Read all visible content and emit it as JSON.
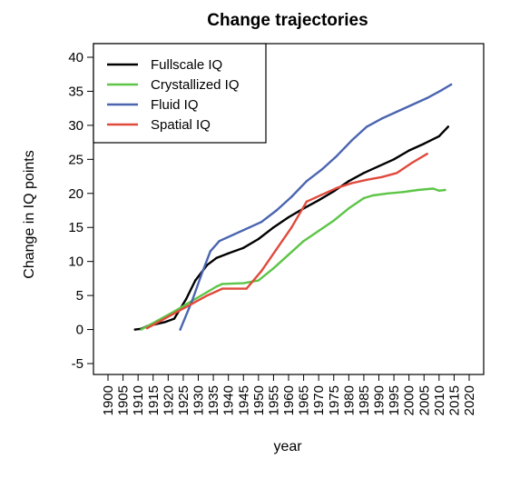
{
  "chart_data": {
    "type": "line",
    "title": "Change trajectories",
    "xlabel": "year",
    "ylabel": "Change in IQ points",
    "xlim": [
      1900,
      2020
    ],
    "ylim": [
      -5,
      40
    ],
    "x_ticks": [
      1900,
      1905,
      1910,
      1915,
      1920,
      1925,
      1930,
      1935,
      1940,
      1945,
      1950,
      1955,
      1960,
      1965,
      1970,
      1975,
      1980,
      1985,
      1990,
      1995,
      2000,
      2005,
      2010,
      2015,
      2020
    ],
    "y_ticks": [
      -5,
      0,
      5,
      10,
      15,
      20,
      25,
      30,
      35,
      40
    ],
    "grid": false,
    "legend_position": "top-left",
    "series": [
      {
        "name": "Fullscale IQ",
        "color": "#000000",
        "points": [
          [
            1909,
            0
          ],
          [
            1911,
            0.1
          ],
          [
            1913,
            0.5
          ],
          [
            1916,
            0.8
          ],
          [
            1919,
            1.1
          ],
          [
            1922,
            1.6
          ],
          [
            1926,
            4.5
          ],
          [
            1929,
            7.2
          ],
          [
            1933,
            9.5
          ],
          [
            1936,
            10.5
          ],
          [
            1940,
            11.2
          ],
          [
            1945,
            12.0
          ],
          [
            1950,
            13.3
          ],
          [
            1955,
            15.0
          ],
          [
            1960,
            16.5
          ],
          [
            1965,
            17.8
          ],
          [
            1970,
            19.0
          ],
          [
            1975,
            20.3
          ],
          [
            1980,
            21.8
          ],
          [
            1985,
            23.0
          ],
          [
            1990,
            24.0
          ],
          [
            1995,
            25.0
          ],
          [
            2000,
            26.3
          ],
          [
            2005,
            27.3
          ],
          [
            2010,
            28.4
          ],
          [
            2013,
            29.8
          ]
        ]
      },
      {
        "name": "Crystallized IQ",
        "color": "#5DC547",
        "points": [
          [
            1911,
            0
          ],
          [
            1916,
            1.2
          ],
          [
            1921,
            2.4
          ],
          [
            1926,
            3.7
          ],
          [
            1931,
            5.0
          ],
          [
            1936,
            6.3
          ],
          [
            1938,
            6.7
          ],
          [
            1945,
            6.8
          ],
          [
            1950,
            7.2
          ],
          [
            1955,
            9.0
          ],
          [
            1960,
            11.0
          ],
          [
            1965,
            13.0
          ],
          [
            1970,
            14.5
          ],
          [
            1975,
            16.0
          ],
          [
            1980,
            17.8
          ],
          [
            1985,
            19.3
          ],
          [
            1988,
            19.7
          ],
          [
            1993,
            20.0
          ],
          [
            1998,
            20.2
          ],
          [
            2003,
            20.5
          ],
          [
            2008,
            20.7
          ],
          [
            2010,
            20.4
          ],
          [
            2012,
            20.5
          ]
        ]
      },
      {
        "name": "Fluid IQ",
        "color": "#4A64B0",
        "points": [
          [
            1924,
            0
          ],
          [
            1928,
            4.3
          ],
          [
            1931,
            8.0
          ],
          [
            1934,
            11.5
          ],
          [
            1937,
            13.0
          ],
          [
            1942,
            14.0
          ],
          [
            1947,
            15.0
          ],
          [
            1951,
            15.8
          ],
          [
            1956,
            17.5
          ],
          [
            1961,
            19.5
          ],
          [
            1966,
            21.8
          ],
          [
            1971,
            23.5
          ],
          [
            1976,
            25.5
          ],
          [
            1981,
            27.8
          ],
          [
            1986,
            29.8
          ],
          [
            1991,
            31.0
          ],
          [
            1996,
            32.0
          ],
          [
            2001,
            33.0
          ],
          [
            2006,
            34.0
          ],
          [
            2011,
            35.2
          ],
          [
            2014,
            36.0
          ]
        ]
      },
      {
        "name": "Spatial IQ",
        "color": "#E04A3C",
        "points": [
          [
            1913,
            0.2
          ],
          [
            1918,
            1.4
          ],
          [
            1923,
            2.6
          ],
          [
            1928,
            3.8
          ],
          [
            1933,
            5.0
          ],
          [
            1938,
            6.0
          ],
          [
            1946,
            6.0
          ],
          [
            1951,
            8.6
          ],
          [
            1956,
            11.8
          ],
          [
            1961,
            15.0
          ],
          [
            1966,
            18.8
          ],
          [
            1971,
            19.8
          ],
          [
            1976,
            20.8
          ],
          [
            1981,
            21.5
          ],
          [
            1986,
            22.0
          ],
          [
            1991,
            22.4
          ],
          [
            1996,
            23.0
          ],
          [
            2001,
            24.5
          ],
          [
            2006,
            25.8
          ]
        ]
      }
    ]
  }
}
